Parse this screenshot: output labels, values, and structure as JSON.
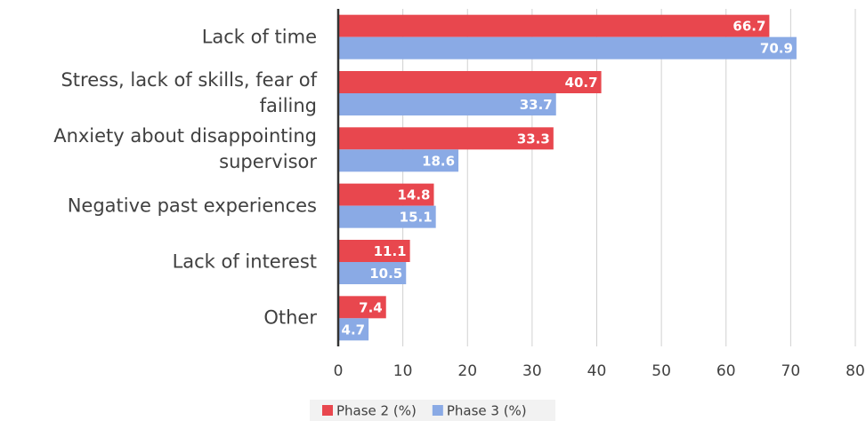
{
  "chart_data": {
    "type": "hbar",
    "categories": [
      "Lack of time",
      "Stress, lack of skills, fear of failing",
      "Anxiety about disappointing supervisor",
      "Negative past experiences",
      "Lack of interest",
      "Other"
    ],
    "series": [
      {
        "name": "Phase 2 (%)",
        "color": "#e8474e",
        "values": [
          66.7,
          40.7,
          33.3,
          14.8,
          11.1,
          7.4
        ]
      },
      {
        "name": "Phase 3 (%)",
        "color": "#8aaae5",
        "values": [
          70.9,
          33.7,
          18.6,
          15.1,
          10.5,
          4.7
        ]
      }
    ],
    "xlim": [
      0,
      80
    ],
    "xticks": [
      0,
      10,
      20,
      30,
      40,
      50,
      60,
      70,
      80
    ],
    "grid": true,
    "legend": "bottom"
  }
}
